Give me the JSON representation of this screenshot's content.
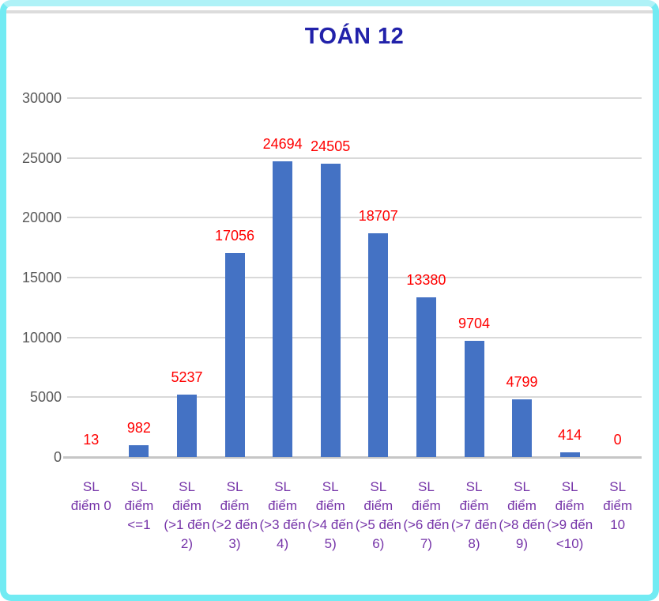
{
  "chart_data": {
    "type": "bar",
    "title": "TOÁN 12",
    "categories": [
      "SL điểm 0",
      "SL điểm <=1",
      "SL điểm (>1 đến 2)",
      "SL điểm (>2 đến 3)",
      "SL điểm (>3 đến 4)",
      "SL điểm (>4 đến 5)",
      "SL điểm (>5 đến 6)",
      "SL điểm (>6 đến 7)",
      "SL điểm (>7 đến 8)",
      "SL điểm (>8 đến 9)",
      "SL điểm (>9 đến <10)",
      "SL điểm 10"
    ],
    "category_lines": [
      [
        "SL",
        "điểm 0"
      ],
      [
        "SL",
        "điểm",
        "<=1"
      ],
      [
        "SL",
        "điểm",
        "(>1 đến",
        "2)"
      ],
      [
        "SL",
        "điểm",
        "(>2 đến",
        "3)"
      ],
      [
        "SL",
        "điểm",
        "(>3 đến",
        "4)"
      ],
      [
        "SL",
        "điểm",
        "(>4 đến",
        "5)"
      ],
      [
        "SL",
        "điểm",
        "(>5 đến",
        "6)"
      ],
      [
        "SL",
        "điểm",
        "(>6 đến",
        "7)"
      ],
      [
        "SL",
        "điểm",
        "(>7 đến",
        "8)"
      ],
      [
        "SL",
        "điểm",
        "(>8 đến",
        "9)"
      ],
      [
        "SL",
        "điểm",
        "(>9 đến",
        "<10)"
      ],
      [
        "SL",
        "điểm",
        "10"
      ]
    ],
    "values": [
      13,
      982,
      5237,
      17056,
      24694,
      24505,
      18707,
      13380,
      9704,
      4799,
      414,
      0
    ],
    "xlabel": "",
    "ylabel": "",
    "ylim": [
      0,
      30000
    ],
    "yticks": [
      0,
      5000,
      10000,
      15000,
      20000,
      25000,
      30000
    ],
    "grid": true,
    "legend": "none",
    "data_labels": true,
    "colors": {
      "bar": "#4472C4",
      "data_label": "#FF0000",
      "title": "#2222AA",
      "x_label": "#7533A8",
      "y_tick": "#595959",
      "gridline": "#D9D9D9",
      "axis_line": "#C6C6C6",
      "frame_border": "#72EBF3"
    }
  }
}
